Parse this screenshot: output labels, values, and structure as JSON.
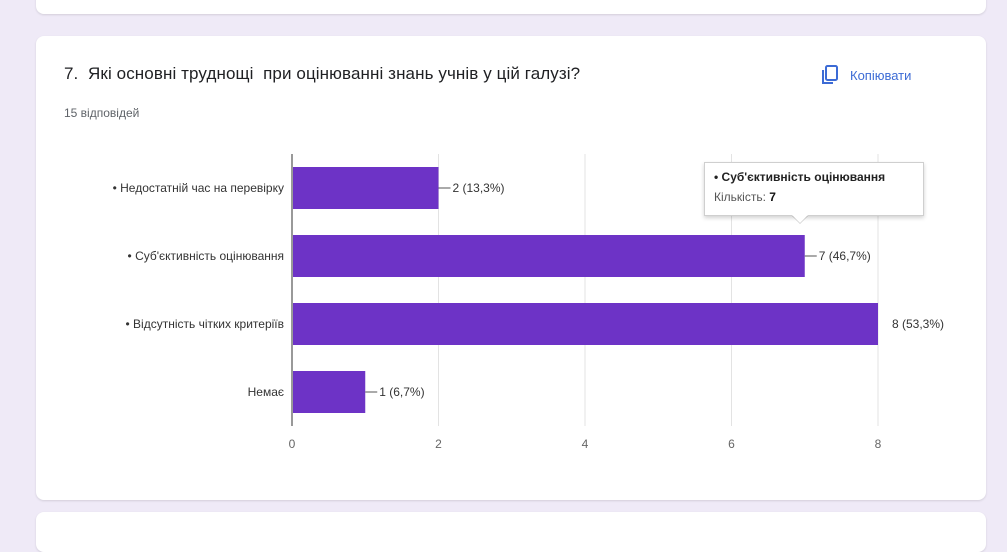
{
  "question": {
    "title": "7.  Які основні труднощі  при оцінюванні знань учнів у цій галузі?",
    "response_count": "15 відповідей",
    "copy_label": "Копіювати"
  },
  "tooltip": {
    "category": "• Суб'єктивність оцінювання",
    "count_label": "Кількість:",
    "count_value": "7"
  },
  "colors": {
    "bar": "#6d33c6",
    "accent": "#3c6bd5",
    "background": "#efeaf7"
  },
  "chart_data": {
    "type": "bar",
    "orientation": "horizontal",
    "categories": [
      "• Недостатній час на перевірку",
      "• Суб'єктивність оцінювання",
      "• Відсутність чітких критеріїв",
      "Немає"
    ],
    "values": [
      2,
      7,
      8,
      1
    ],
    "value_labels": [
      "2 (13,3%)",
      "7 (46,7%)",
      "8 (53,3%)",
      "1 (6,7%)"
    ],
    "xlim": [
      0,
      8
    ],
    "xticks": [
      "0",
      "2",
      "4",
      "6",
      "8"
    ],
    "grid": true,
    "legend": "none"
  }
}
